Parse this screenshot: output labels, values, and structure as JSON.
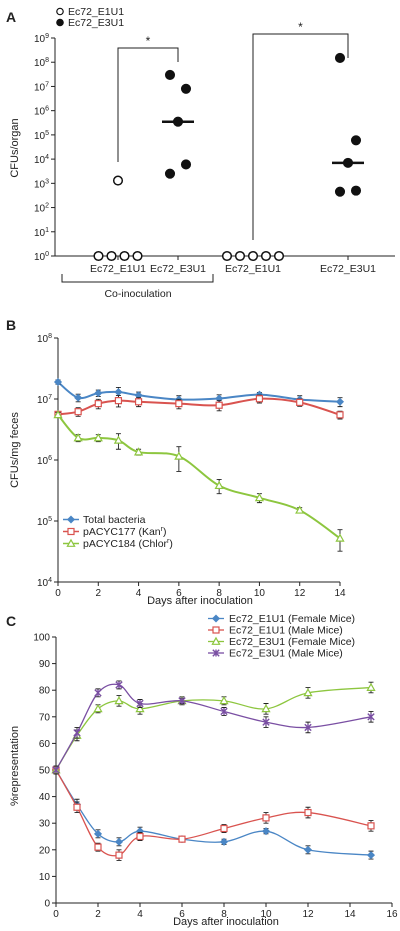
{
  "panels": {
    "a": {
      "letter": "A"
    },
    "b": {
      "letter": "B"
    },
    "c": {
      "letter": "C"
    }
  },
  "chart_data": [
    {
      "id": "A",
      "type": "scatter",
      "ylabel": "CFUs/organ",
      "yscale": "log",
      "ylim": [
        1,
        1000000000
      ],
      "y_tick_bases": [
        "10",
        "10",
        "10",
        "10",
        "10",
        "10",
        "10",
        "10",
        "10",
        "10"
      ],
      "y_tick_exponents": [
        "0",
        "1",
        "2",
        "3",
        "4",
        "5",
        "6",
        "7",
        "8",
        "9"
      ],
      "categories": [
        "Ec72_E1U1",
        "Ec72_E3U1",
        "Ec72_E1U1",
        "Ec72_E3U1"
      ],
      "legend": [
        {
          "name": "Ec72_E1U1",
          "marker": "open-circle"
        },
        {
          "name": "Ec72_E3U1",
          "marker": "filled-circle"
        }
      ],
      "groups": [
        {
          "category_index": 0,
          "marker": "open",
          "points": [
            1,
            1,
            1,
            1,
            1300
          ],
          "median": null
        },
        {
          "category_index": 1,
          "marker": "filled",
          "points": [
            2500,
            6000,
            350000,
            8000000,
            30000000
          ],
          "median": 350000
        },
        {
          "category_index": 2,
          "marker": "open",
          "points": [
            1,
            1,
            1,
            1,
            1
          ],
          "median": null
        },
        {
          "category_index": 3,
          "marker": "filled",
          "points": [
            450,
            500,
            7000,
            60000,
            150000000
          ],
          "median": 7000
        }
      ],
      "significance": [
        {
          "from": 0,
          "to": 1,
          "label": "*"
        },
        {
          "from": 2,
          "to": 3,
          "label": "*"
        }
      ],
      "group_bracket_label": "Co-inoculation"
    },
    {
      "id": "B",
      "type": "line",
      "xlabel": "Days after inoculation",
      "ylabel": "CFUs/mg feces",
      "yscale": "log",
      "xlim": [
        0,
        14
      ],
      "ylim": [
        10000,
        100000000
      ],
      "x_ticks": [
        "0",
        "2",
        "4",
        "6",
        "8",
        "10",
        "12",
        "14"
      ],
      "y_tick_bases": [
        "10",
        "10",
        "10",
        "10",
        "10"
      ],
      "y_tick_exponents": [
        "4",
        "5",
        "6",
        "7",
        "8"
      ],
      "x": [
        0,
        1,
        2,
        3,
        4,
        6,
        8,
        10,
        12,
        14
      ],
      "series": [
        {
          "name": "Total bacteria",
          "color": "#4a86c5",
          "marker": "diamond",
          "values": [
            19000000,
            10500000,
            12500000,
            13000000,
            11500000,
            9800000,
            10200000,
            11800000,
            9800000,
            9000000
          ],
          "errors": [
            1500000,
            1500000,
            1500000,
            2500000,
            1500000,
            1500000,
            1500000,
            1000000,
            1500000,
            1500000
          ]
        },
        {
          "name": "pACYC177 (Kan",
          "sup": "r",
          "close": ")",
          "color": "#d9534f",
          "marker": "square",
          "values": [
            5600000,
            6200000,
            8400000,
            9400000,
            9000000,
            8400000,
            7900000,
            10100000,
            8800000,
            5500000
          ],
          "errors": [
            500000,
            1000000,
            1500000,
            2000000,
            1500000,
            1500000,
            1500000,
            1500000,
            1200000,
            800000
          ]
        },
        {
          "name": "pACYC184 (Chlor",
          "sup": "r",
          "close": ")",
          "color": "#8dc63f",
          "marker": "triangle",
          "values": [
            5500000,
            2300000,
            2300000,
            2100000,
            1350000,
            1150000,
            380000,
            240000,
            150000,
            52000
          ],
          "errors": [
            500000,
            300000,
            300000,
            600000,
            150000,
            500000,
            100000,
            40000,
            15000,
            20000
          ]
        }
      ],
      "legend_position": "bottom-left"
    },
    {
      "id": "C",
      "type": "line",
      "xlabel": "Days after inoculation",
      "ylabel": "%representation",
      "xlim": [
        0,
        16
      ],
      "ylim": [
        0,
        100
      ],
      "x_ticks": [
        "0",
        "2",
        "4",
        "6",
        "8",
        "10",
        "12",
        "14",
        "16"
      ],
      "y_ticks": [
        "0",
        "10",
        "20",
        "30",
        "40",
        "50",
        "60",
        "70",
        "80",
        "90",
        "100"
      ],
      "x": [
        0,
        1,
        2,
        3,
        4,
        6,
        8,
        10,
        12,
        15
      ],
      "series": [
        {
          "name": "Ec72_E1U1 (Female Mice)",
          "color": "#4a86c5",
          "marker": "diamond",
          "values": [
            50,
            37,
            26,
            23,
            27,
            24,
            23,
            27,
            20,
            18
          ],
          "errors": [
            1.5,
            2,
            1.5,
            1.5,
            1.5,
            1,
            1,
            1,
            1.5,
            1.5
          ]
        },
        {
          "name": "Ec72_E1U1 (Male Mice)",
          "color": "#d9534f",
          "marker": "square",
          "values": [
            50,
            36,
            21,
            18,
            25,
            24,
            28,
            32,
            34,
            29
          ],
          "errors": [
            1.5,
            2,
            1.5,
            2,
            1.5,
            1,
            1.5,
            2,
            2,
            2
          ]
        },
        {
          "name": "Ec72_E3U1 (Female Mice)",
          "color": "#8dc63f",
          "marker": "triangle",
          "values": [
            50,
            63,
            73,
            76,
            73,
            76,
            76,
            73,
            79,
            81
          ],
          "errors": [
            1.5,
            2,
            1.5,
            2,
            2,
            1.5,
            1.5,
            2,
            2,
            2
          ]
        },
        {
          "name": "Ec72_E3U1 (Male Mice)",
          "color": "#7a4fa3",
          "marker": "x",
          "values": [
            50,
            64,
            79,
            82,
            75,
            76,
            72,
            68,
            66,
            70
          ],
          "errors": [
            1.5,
            2,
            1.5,
            1.5,
            1.5,
            1,
            1.5,
            2,
            2,
            2
          ]
        }
      ],
      "legend_position": "top-right"
    }
  ]
}
